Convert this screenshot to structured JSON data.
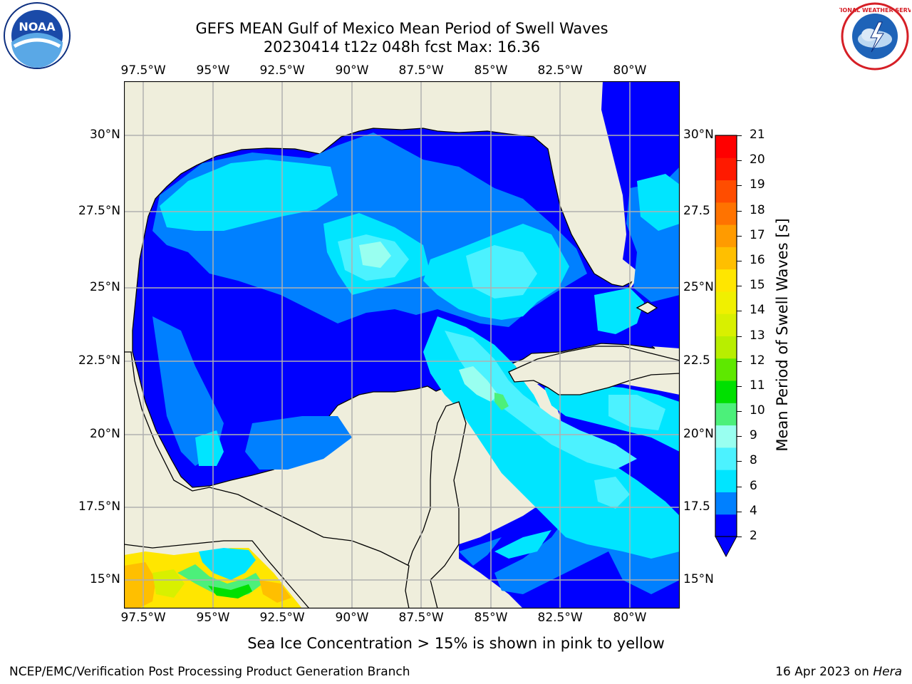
{
  "title_line1": "GEFS MEAN Gulf of Mexico Mean Period of Swell Waves",
  "title_line2": "20230414 t12z 048h fcst   Max: 16.36",
  "logos": {
    "left": "noaa-logo",
    "right": "nws-logo",
    "left_text": "NOAA",
    "right_text": "NATIONAL WEATHER SERVICE"
  },
  "lon_labels": [
    "97.5°W",
    "95°W",
    "92.5°W",
    "90°W",
    "87.5°W",
    "85°W",
    "82.5°W",
    "80°W"
  ],
  "lat_labels_left": [
    "30°N",
    "27.5°N",
    "25°N",
    "22.5°N",
    "20°N",
    "17.5°N",
    "15°N"
  ],
  "lat_labels_right": [
    "30°N",
    "27.5",
    "25°N",
    "22.5",
    "20°N",
    "17.5",
    "15°N"
  ],
  "colorbar": {
    "label": "Mean Period of Swell Waves [s]",
    "ticks": [
      "21",
      "20",
      "19",
      "18",
      "17",
      "16",
      "15",
      "14",
      "13",
      "12",
      "11",
      "10",
      "9",
      "8",
      "6",
      "4",
      "2"
    ],
    "colors": [
      "#0000ff",
      "#0080ff",
      "#00e5ff",
      "#4cf2ff",
      "#99fff0",
      "#4cf07a",
      "#00e000",
      "#5ee800",
      "#b8ee00",
      "#d8f000",
      "#f0f000",
      "#ffe600",
      "#ffbf00",
      "#ff9b00",
      "#ff7300",
      "#ff4d00",
      "#ff1a00",
      "#ff0000"
    ]
  },
  "note": "Sea Ice Concentration > 15% is shown in pink to yellow",
  "footer_left": "NCEP/EMC/Verification Post Processing Product Generation Branch",
  "footer_date": "16 Apr 2023 on",
  "footer_machine": "Hera"
}
